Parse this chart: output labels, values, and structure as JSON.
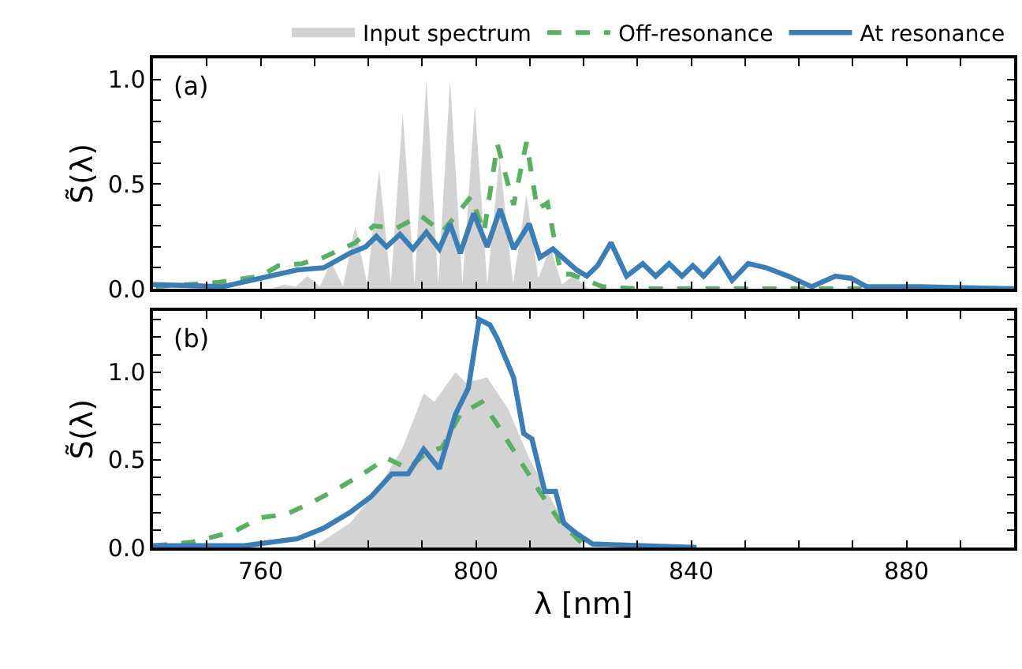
{
  "chart_data": [
    {
      "type": "line",
      "ylabel": "S̃(λ)",
      "annotations": [
        "(a)"
      ],
      "legend": "top",
      "tick_labels": "y",
      "xlim": [
        740,
        900
      ],
      "xticks": [
        {
          "value": 740,
          "label": null
        },
        {
          "value": 750,
          "label": null
        },
        {
          "value": 760,
          "label": null
        },
        {
          "value": 770,
          "label": null
        },
        {
          "value": 780,
          "label": null
        },
        {
          "value": 790,
          "label": null
        },
        {
          "value": 800,
          "label": null
        },
        {
          "value": 810,
          "label": null
        },
        {
          "value": 820,
          "label": null
        },
        {
          "value": 830,
          "label": null
        },
        {
          "value": 840,
          "label": null
        },
        {
          "value": 850,
          "label": null
        },
        {
          "value": 860,
          "label": null
        },
        {
          "value": 870,
          "label": null
        },
        {
          "value": 880,
          "label": null
        },
        {
          "value": 890,
          "label": null
        },
        {
          "value": 900,
          "label": null
        }
      ],
      "ylim": [
        0,
        1.1
      ],
      "yticks": [
        {
          "value": 0,
          "label": "0.0"
        },
        {
          "value": 0.1,
          "label": null
        },
        {
          "value": 0.2,
          "label": null
        },
        {
          "value": 0.3,
          "label": null
        },
        {
          "value": 0.4,
          "label": null
        },
        {
          "value": 0.5,
          "label": "0.5"
        },
        {
          "value": 0.6,
          "label": null
        },
        {
          "value": 0.7,
          "label": null
        },
        {
          "value": 0.8,
          "label": null
        },
        {
          "value": 0.9,
          "label": null
        },
        {
          "value": 1.0,
          "label": "1.0"
        }
      ],
      "series": [
        {
          "name": "Input spectrum",
          "type": "area",
          "color": "#d3d3d3",
          "x": [
            740,
            762,
            764.3,
            766.5,
            768.7,
            771,
            773.1,
            775.3,
            777.6,
            779.8,
            782.0,
            784.2,
            786.4,
            788.6,
            790.8,
            793.0,
            795.2,
            797.5,
            799.8,
            802.1,
            804.4,
            806.9,
            809.4,
            811.6,
            813.8,
            816,
            818,
            821,
            900
          ],
          "values": [
            0,
            0,
            0.02,
            0.01,
            0.06,
            0.01,
            0.13,
            0.01,
            0.3,
            0.02,
            0.57,
            0.02,
            0.84,
            0.02,
            1.0,
            0.02,
            1.0,
            0.02,
            0.88,
            0.02,
            0.63,
            0.02,
            0.45,
            0.05,
            0.2,
            0.02,
            0.06,
            0,
            0
          ]
        },
        {
          "name": "Off-resonance",
          "line_style": "dashed",
          "color": "#5aaf63",
          "x": [
            740.5,
            752,
            760,
            763.3,
            767.7,
            771.7,
            777.6,
            781,
            785.3,
            789.7,
            793.7,
            799.1,
            801.5,
            804,
            807,
            809.4,
            811.4,
            813.3,
            815.8,
            817.6,
            823.5,
            830,
            900
          ],
          "values": [
            0.01,
            0.03,
            0.06,
            0.11,
            0.12,
            0.15,
            0.22,
            0.3,
            0.29,
            0.35,
            0.27,
            0.44,
            0.27,
            0.69,
            0.4,
            0.7,
            0.38,
            0.41,
            0.07,
            0.07,
            0.01,
            0,
            0
          ]
        },
        {
          "name": "At resonance",
          "color": "#3b7db5",
          "x": [
            740,
            753,
            760,
            766.8,
            771.7,
            776.6,
            779.5,
            781.5,
            783.4,
            785.9,
            788.3,
            790.8,
            793.2,
            795.2,
            797.1,
            799.6,
            802.1,
            804.5,
            807,
            809.9,
            811.9,
            814.3,
            818.7,
            820.6,
            822.6,
            825.1,
            828,
            831,
            833.4,
            835.9,
            838.3,
            840.3,
            842.3,
            845.2,
            847.6,
            850.6,
            854,
            858,
            862.4,
            866.8,
            869.7,
            872.6,
            882.4,
            900
          ],
          "values": [
            0.02,
            0.01,
            0.05,
            0.09,
            0.1,
            0.17,
            0.2,
            0.25,
            0.2,
            0.26,
            0.19,
            0.27,
            0.19,
            0.31,
            0.17,
            0.36,
            0.2,
            0.38,
            0.19,
            0.31,
            0.15,
            0.19,
            0.09,
            0.06,
            0.11,
            0.22,
            0.06,
            0.12,
            0.06,
            0.12,
            0.06,
            0.11,
            0.06,
            0.14,
            0.04,
            0.12,
            0.1,
            0.06,
            0.01,
            0.06,
            0.05,
            0.01,
            0.01,
            0.0
          ]
        }
      ]
    },
    {
      "type": "line",
      "ylabel": "S̃(λ)",
      "xlabel": "λ [nm]",
      "annotations": [
        "(b)"
      ],
      "xlim": [
        740,
        900
      ],
      "xticks": [
        {
          "value": 740,
          "label": null
        },
        {
          "value": 750,
          "label": null
        },
        760,
        {
          "value": 770,
          "label": null
        },
        {
          "value": 780,
          "label": null
        },
        {
          "value": 790,
          "label": null
        },
        800,
        {
          "value": 810,
          "label": null
        },
        {
          "value": 820,
          "label": null
        },
        {
          "value": 830,
          "label": null
        },
        840,
        {
          "value": 850,
          "label": null
        },
        {
          "value": 860,
          "label": null
        },
        {
          "value": 870,
          "label": null
        },
        880,
        {
          "value": 890,
          "label": null
        },
        {
          "value": 900,
          "label": null
        }
      ],
      "ylim": [
        0,
        1.35
      ],
      "yticks": [
        {
          "value": 0,
          "label": "0.0"
        },
        {
          "value": 0.1,
          "label": null
        },
        {
          "value": 0.2,
          "label": null
        },
        {
          "value": 0.3,
          "label": null
        },
        {
          "value": 0.4,
          "label": null
        },
        {
          "value": 0.5,
          "label": "0.5"
        },
        {
          "value": 0.6,
          "label": null
        },
        {
          "value": 0.7,
          "label": null
        },
        {
          "value": 0.8,
          "label": null
        },
        {
          "value": 0.9,
          "label": null
        },
        {
          "value": 1.0,
          "label": "1.0"
        },
        {
          "value": 1.1,
          "label": null
        },
        {
          "value": 1.2,
          "label": null
        },
        {
          "value": 1.3,
          "label": null
        }
      ],
      "series": [
        {
          "type": "area",
          "color": "#d3d3d3",
          "x": [
            740,
            769.7,
            776.6,
            781.5,
            786.4,
            790.3,
            792.3,
            796.2,
            798.1,
            802.1,
            806,
            809.9,
            814.8,
            818.7,
            819.7,
            900
          ],
          "values": [
            0,
            0,
            0.14,
            0.32,
            0.57,
            0.88,
            0.83,
            1.0,
            0.94,
            0.97,
            0.79,
            0.51,
            0.23,
            0.08,
            0,
            0
          ]
        },
        {
          "line_style": "dashed",
          "color": "#5aaf63",
          "x": [
            740,
            747.2,
            755,
            760,
            764.8,
            769.7,
            774.6,
            779.5,
            783.4,
            787.4,
            790.8,
            793.7,
            797.1,
            801.1,
            804,
            807.9,
            811.8,
            815.8,
            820.6
          ],
          "values": [
            0.01,
            0.03,
            0.09,
            0.17,
            0.19,
            0.26,
            0.34,
            0.43,
            0.51,
            0.45,
            0.54,
            0.57,
            0.76,
            0.83,
            0.7,
            0.51,
            0.32,
            0.14,
            0.0
          ]
        },
        {
          "color": "#3b7db5",
          "x": [
            740,
            757,
            766.8,
            771.7,
            776.6,
            780.5,
            784.4,
            787.4,
            790.3,
            793.2,
            796.2,
            798.6,
            800.6,
            802.6,
            804,
            807,
            808.9,
            810.4,
            812.8,
            814.8,
            816.3,
            818.7,
            821.7,
            841
          ],
          "values": [
            0.01,
            0.01,
            0.05,
            0.11,
            0.2,
            0.29,
            0.42,
            0.42,
            0.56,
            0.45,
            0.76,
            0.91,
            1.3,
            1.27,
            1.19,
            0.97,
            0.65,
            0.62,
            0.32,
            0.32,
            0.14,
            0.08,
            0.02,
            0.0
          ]
        }
      ]
    }
  ]
}
